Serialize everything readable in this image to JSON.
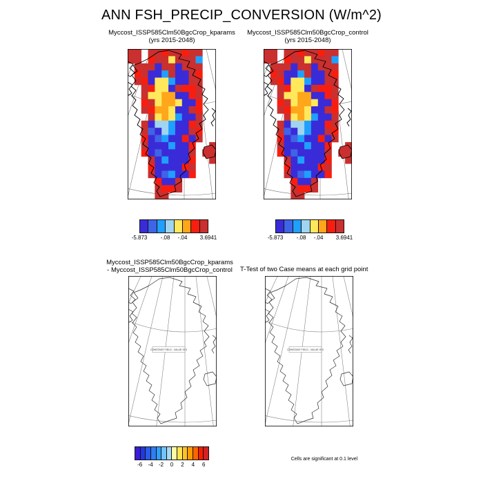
{
  "title": "ANN FSH_PRECIP_CONVERSION (W/m^2)",
  "footnote": "Cells are significant at 0.1 level",
  "map_cells": {
    "cols": 13,
    "rows": 21,
    "palette": {
      "B": "#3A2BD8",
      "G": "#3F64E6",
      "C": "#1FA0FF",
      "L": "#A0D4F0",
      "Y": "#FFE85C",
      "O": "#FFA61A",
      "R": "#F81E0F",
      "K": "#C9302F"
    },
    "grid": [
      "KK.KKRKKRKK..",
      "KK.RKKYKKKC..",
      ".KKKBKKBKKK..",
      ".RKBBCKBBKR..",
      ".KRBYYCBBKK..",
      "..KRYYBKRRK..",
      "..KYYOOBBRK..",
      "..RKYOOYBBR..",
      "..KROOYBBKR..",
      "...KYOYCBBK..",
      "..KBLLCBBRK..",
      "..KGBLCBBKR..",
      "..RBGCBBRBK..",
      "..KBBBCBBR..K",
      "..RBGBBBBK.KK",
      "...KBCBBBR..K",
      "...RBBBBRK...",
      "...KBGCBBR...",
      "....RBBK.....",
      "....KRRK.....",
      "....KK......."
    ]
  },
  "chart_data": [
    {
      "type": "heatmap",
      "panel": "upper_left",
      "title": "Myccost_ISSP585Clm50BgcCrop_kparams",
      "subtitle": "(yrs 2015-2048)",
      "variable": "ANN FSH_PRECIP_CONVERSION (W/m^2)",
      "region": "Greenland polar stereographic map",
      "colorbar": {
        "colors": [
          "#3A2BD8",
          "#3F64E6",
          "#1FA0FF",
          "#A0D4F0",
          "#FFE85C",
          "#FFA61A",
          "#F81E0F",
          "#C9302F"
        ],
        "tick_labels": [
          "-5.873",
          "-.08",
          "-.04",
          "3.6941"
        ],
        "tick_positions": [
          0,
          0.375,
          0.625,
          1
        ]
      }
    },
    {
      "type": "heatmap",
      "panel": "upper_right",
      "title": "Myccost_ISSP585Clm50BgcCrop_control",
      "subtitle": "(yrs 2015-2048)",
      "variable": "ANN FSH_PRECIP_CONVERSION (W/m^2)",
      "region": "Greenland polar stereographic map",
      "colorbar": {
        "colors": [
          "#3A2BD8",
          "#3F64E6",
          "#1FA0FF",
          "#A0D4F0",
          "#FFE85C",
          "#FFA61A",
          "#F81E0F",
          "#C9302F"
        ],
        "tick_labels": [
          "-5.873",
          "-.08",
          "-.04",
          "3.6941"
        ],
        "tick_positions": [
          0,
          0.375,
          0.625,
          1
        ]
      }
    },
    {
      "type": "outline-map",
      "panel": "lower_left",
      "title_line1": "Myccost_ISSP585Clm50BgcCrop_kparams",
      "title_line2": "- Myccost_ISSP585Clm50BgcCrop_control",
      "annotation": "CONSTANT FIELD - VALUE IS 0"
    },
    {
      "type": "outline-map",
      "panel": "lower_right",
      "title": "T-Test of two Case means at each grid point",
      "annotation": "CONSTANT FIELD - VALUE IS 0",
      "note": "Cells are significant at 0.1 level",
      "colorbar": {
        "colors": [
          "#3A1DD8",
          "#2338E2",
          "#2B5BEA",
          "#2F7DF2",
          "#2F9FFF",
          "#6FC4FF",
          "#A8DAF2",
          "#FAFAA8",
          "#FFE44F",
          "#FFC125",
          "#FF9C00",
          "#FF6400",
          "#F81E00",
          "#D42222"
        ],
        "tick_labels": [
          "-6",
          "-4",
          "-2",
          "0",
          "2",
          "4",
          "6"
        ],
        "tick_positions": [
          0.0714,
          0.2143,
          0.3571,
          0.5,
          0.6429,
          0.7857,
          0.9286
        ]
      }
    }
  ]
}
